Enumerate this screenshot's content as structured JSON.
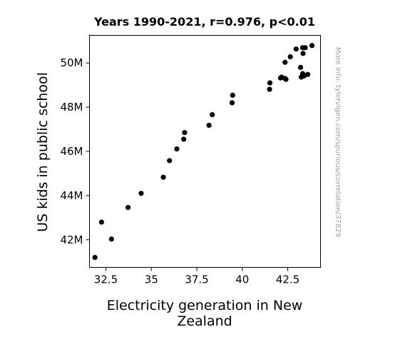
{
  "chart_data": {
    "type": "scatter",
    "title": "Years 1990-2021, r=0.976, p<0.01",
    "xlabel_lines": [
      "Electricity generation in New",
      "Zealand"
    ],
    "ylabel": "US kids in public school",
    "side_note": "More info: tylervigen.com/spurious/correlation/37829",
    "xlim": [
      31.6,
      44.3
    ],
    "ylim": [
      40.75,
      51.25
    ],
    "x_ticks": [
      {
        "value": 32.5,
        "label": "32.5"
      },
      {
        "value": 35,
        "label": "35"
      },
      {
        "value": 37.5,
        "label": "37.5"
      },
      {
        "value": 40,
        "label": "40"
      },
      {
        "value": 42.5,
        "label": "42.5"
      }
    ],
    "y_ticks": [
      {
        "value": 42,
        "label": "42M"
      },
      {
        "value": 44,
        "label": "44M"
      },
      {
        "value": 46,
        "label": "46M"
      },
      {
        "value": 48,
        "label": "48M"
      },
      {
        "value": 50,
        "label": "50M"
      }
    ],
    "grid": false,
    "marker_color": "#000000",
    "points": [
      {
        "x": 31.9,
        "y": 41.2
      },
      {
        "x": 32.26,
        "y": 42.8
      },
      {
        "x": 32.81,
        "y": 42.03
      },
      {
        "x": 33.72,
        "y": 43.46
      },
      {
        "x": 34.44,
        "y": 44.1
      },
      {
        "x": 35.66,
        "y": 44.83
      },
      {
        "x": 36.0,
        "y": 45.58
      },
      {
        "x": 36.4,
        "y": 46.11
      },
      {
        "x": 36.78,
        "y": 46.55
      },
      {
        "x": 36.83,
        "y": 46.85
      },
      {
        "x": 38.17,
        "y": 47.18
      },
      {
        "x": 38.35,
        "y": 47.66
      },
      {
        "x": 39.44,
        "y": 48.2
      },
      {
        "x": 39.47,
        "y": 48.54
      },
      {
        "x": 41.5,
        "y": 48.81
      },
      {
        "x": 41.52,
        "y": 49.1
      },
      {
        "x": 42.1,
        "y": 49.32
      },
      {
        "x": 42.16,
        "y": 49.36
      },
      {
        "x": 42.35,
        "y": 49.3
      },
      {
        "x": 42.4,
        "y": 49.26
      },
      {
        "x": 42.35,
        "y": 50.03
      },
      {
        "x": 42.64,
        "y": 50.28
      },
      {
        "x": 42.96,
        "y": 50.63
      },
      {
        "x": 43.2,
        "y": 49.8
      },
      {
        "x": 43.24,
        "y": 49.36
      },
      {
        "x": 43.32,
        "y": 49.52
      },
      {
        "x": 43.4,
        "y": 49.42
      },
      {
        "x": 43.6,
        "y": 49.48
      },
      {
        "x": 43.34,
        "y": 50.43
      },
      {
        "x": 43.32,
        "y": 50.69
      },
      {
        "x": 43.46,
        "y": 50.69
      },
      {
        "x": 43.83,
        "y": 50.79
      }
    ]
  }
}
